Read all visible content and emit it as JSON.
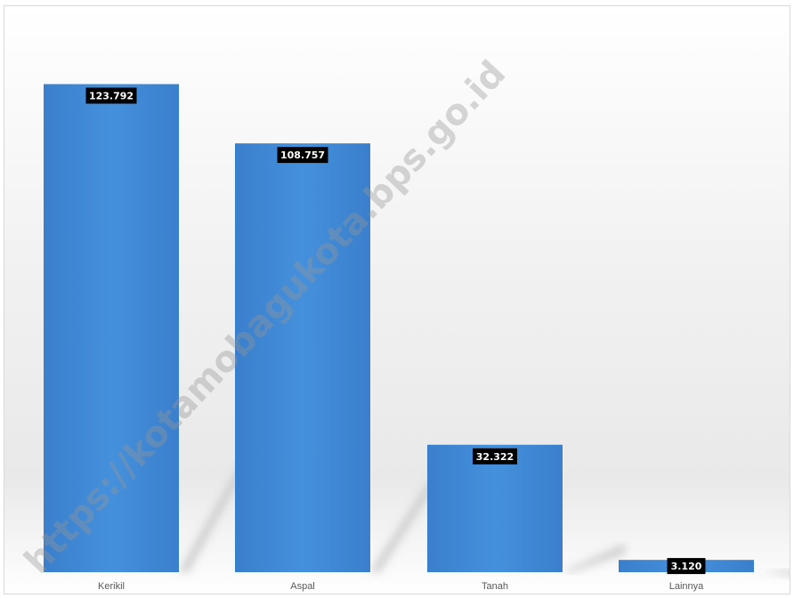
{
  "watermark": "https://kotamobagukota.bps.go.id",
  "chart_data": {
    "type": "bar",
    "categories": [
      "Kerikil",
      "Aspal",
      "Tanah",
      "Lainnya"
    ],
    "values": [
      123.792,
      108.757,
      32.322,
      3.12
    ],
    "value_labels": [
      "123.792",
      "108.757",
      "32.322",
      "3.120"
    ],
    "title": "",
    "xlabel": "",
    "ylabel": "",
    "ylim": [
      0,
      130
    ],
    "grid": false,
    "legend": "none",
    "bar_color": "#3D85D4",
    "label_box_color": "#000000"
  }
}
